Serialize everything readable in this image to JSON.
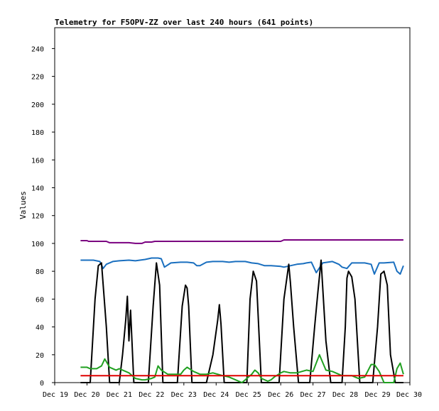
{
  "chart_data": {
    "type": "line",
    "title": "Telemetry for F5OPV-ZZ over last 240 hours (641 points)",
    "xlabel": "",
    "ylabel": "Values",
    "ylim": [
      0,
      255
    ],
    "xlim": [
      0,
      11
    ],
    "y_ticks": [
      0,
      20,
      40,
      60,
      80,
      100,
      120,
      140,
      160,
      180,
      200,
      220,
      240
    ],
    "x_tick_labels": [
      "Dec 19",
      "Dec 20",
      "Dec 21",
      "Dec 22",
      "Dec 23",
      "Dec 24",
      "Dec 25",
      "Dec 26",
      "Dec 27",
      "Dec 28",
      "Dec 29",
      "Dec 30"
    ],
    "grid": false,
    "series": [
      {
        "color": "#7a0080",
        "x": [
          0.8,
          1.0,
          1.05,
          1.6,
          1.7,
          2.3,
          2.5,
          2.7,
          2.8,
          3.0,
          3.1,
          3.5,
          7.0,
          7.1,
          10.8
        ],
        "y": [
          102,
          102,
          101.5,
          101.5,
          100.5,
          100.5,
          100,
          100,
          101,
          101,
          101.5,
          101.5,
          101.5,
          102.5,
          102.5
        ]
      },
      {
        "color": "#1a6fbf",
        "x": [
          0.8,
          1.2,
          1.4,
          1.5,
          1.6,
          1.8,
          2.0,
          2.3,
          2.5,
          2.8,
          3.0,
          3.2,
          3.3,
          3.4,
          3.6,
          3.9,
          4.1,
          4.3,
          4.4,
          4.5,
          4.7,
          4.9,
          5.2,
          5.4,
          5.6,
          5.9,
          6.1,
          6.3,
          6.5,
          6.7,
          7.0,
          7.1,
          7.3,
          7.5,
          7.7,
          7.8,
          7.95,
          8.1,
          8.3,
          8.6,
          8.8,
          8.9,
          9.05,
          9.2,
          9.6,
          9.8,
          9.9,
          10.05,
          10.2,
          10.5,
          10.6,
          10.7,
          10.8
        ],
        "y": [
          88,
          88,
          87,
          82,
          85,
          87,
          87.5,
          88,
          87.5,
          88.5,
          89.5,
          89.5,
          89,
          83,
          86,
          86.5,
          86.5,
          86,
          84,
          84,
          86.5,
          87,
          87,
          86.5,
          87,
          87,
          86,
          85.5,
          84,
          84,
          83.5,
          83,
          84,
          85,
          85.5,
          86,
          86.5,
          79,
          86,
          87,
          85,
          83,
          82,
          86,
          86,
          85,
          78,
          86,
          86,
          86.5,
          80,
          78,
          84
        ]
      },
      {
        "color": "#000000",
        "x": [
          0.8,
          1.1,
          1.25,
          1.35,
          1.45,
          1.55,
          1.6,
          1.7,
          2.0,
          2.1,
          2.2,
          2.25,
          2.3,
          2.35,
          2.45,
          2.6,
          2.9,
          3.05,
          3.15,
          3.25,
          3.35,
          3.55,
          3.8,
          3.95,
          4.05,
          4.1,
          4.15,
          4.25,
          4.45,
          4.7,
          4.9,
          5.05,
          5.1,
          5.15,
          5.25,
          5.45,
          5.95,
          6.05,
          6.15,
          6.25,
          6.4,
          6.55,
          6.7,
          6.95,
          7.1,
          7.25,
          7.3,
          7.4,
          7.55,
          7.9,
          8.05,
          8.15,
          8.25,
          8.4,
          8.55,
          8.9,
          9.0,
          9.05,
          9.1,
          9.2,
          9.3,
          9.45,
          9.85,
          10.0,
          10.1,
          10.2,
          10.3,
          10.4,
          10.55,
          10.8
        ],
        "y": [
          0,
          0,
          60,
          84,
          86,
          55,
          40,
          0,
          0,
          20,
          45,
          62,
          30,
          52,
          0,
          0,
          0,
          55,
          86,
          70,
          0,
          0,
          0,
          55,
          70,
          68,
          55,
          0,
          0,
          0,
          20,
          45,
          56,
          42,
          0,
          0,
          0,
          60,
          80,
          73,
          0,
          0,
          0,
          0,
          60,
          85,
          72,
          40,
          0,
          0,
          40,
          65,
          88,
          30,
          0,
          0,
          40,
          75,
          80,
          76,
          60,
          0,
          0,
          40,
          78,
          80,
          70,
          20,
          0,
          0
        ]
      },
      {
        "color": "#20a020",
        "x": [
          0.8,
          1.0,
          1.1,
          1.3,
          1.45,
          1.55,
          1.7,
          1.9,
          2.0,
          2.2,
          2.3,
          2.5,
          2.7,
          2.8,
          3.0,
          3.1,
          3.2,
          3.3,
          3.5,
          3.6,
          3.8,
          3.9,
          4.0,
          4.1,
          4.3,
          4.5,
          4.7,
          4.9,
          5.2,
          5.4,
          5.6,
          5.8,
          5.9,
          6.1,
          6.2,
          6.3,
          6.4,
          6.6,
          6.7,
          6.8,
          7.0,
          7.1,
          7.3,
          7.5,
          7.8,
          8.0,
          8.2,
          8.4,
          8.6,
          8.9,
          9.0,
          9.2,
          9.4,
          9.6,
          9.8,
          9.9,
          10.05,
          10.2,
          10.5,
          10.6,
          10.7,
          10.8
        ],
        "y": [
          11,
          11,
          10,
          10,
          12,
          17,
          11,
          9,
          10,
          8,
          7,
          3,
          2,
          2,
          3,
          4,
          12,
          9,
          6,
          6,
          6,
          6,
          9,
          11,
          8,
          6,
          6,
          7,
          5,
          4,
          2,
          0,
          2,
          6,
          9,
          7,
          3,
          1,
          2,
          4,
          7,
          8,
          7,
          7,
          9,
          8,
          20,
          9,
          8,
          5,
          5,
          5,
          3,
          4,
          13,
          13,
          8,
          0,
          0,
          10,
          14,
          6
        ]
      },
      {
        "color": "#e00000",
        "x": [
          0.8,
          10.8
        ],
        "y": [
          5,
          5
        ]
      }
    ]
  }
}
